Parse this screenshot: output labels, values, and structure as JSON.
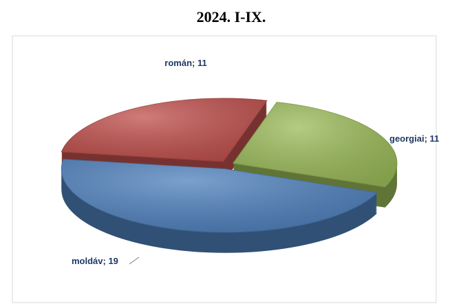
{
  "chart_data": {
    "type": "pie",
    "title": "2024. I-IX.",
    "values": [
      19,
      11,
      11
    ],
    "value_labels": [
      "moldáv; 19",
      "román; 11",
      "georgiai; 11"
    ],
    "colors": [
      "#4f81bd",
      "#c0504d",
      "#9bbb59"
    ]
  }
}
